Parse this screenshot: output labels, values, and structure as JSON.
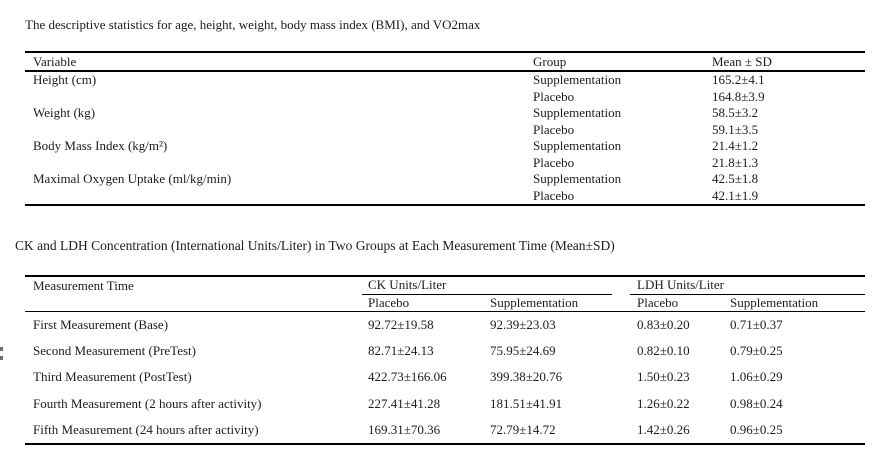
{
  "page": {
    "background": "#ffffff",
    "text_color": "#1c1c1c",
    "rule_color": "#000000"
  },
  "descriptive_table": {
    "caption": "The descriptive statistics for age, height, weight, body mass index (BMI), and VO2max",
    "headers": {
      "variable": "Variable",
      "group": "Group",
      "mean_sd": "Mean ± SD"
    },
    "rows": [
      {
        "variable": "Height (cm)",
        "group": "Supplementation",
        "mean_sd": "165.2±4.1"
      },
      {
        "variable": "",
        "group": "Placebo",
        "mean_sd": "164.8±3.9"
      },
      {
        "variable": "Weight (kg)",
        "group": "Supplementation",
        "mean_sd": "58.5±3.2"
      },
      {
        "variable": "",
        "group": "Placebo",
        "mean_sd": "59.1±3.5"
      },
      {
        "variable": "Body Mass Index (kg/m²)",
        "group": "Supplementation",
        "mean_sd": "21.4±1.2"
      },
      {
        "variable": "",
        "group": "Placebo",
        "mean_sd": "21.8±1.3"
      },
      {
        "variable": "Maximal Oxygen Uptake (ml/kg/min)",
        "group": "Supplementation",
        "mean_sd": "42.5±1.8"
      },
      {
        "variable": "",
        "group": "Placebo",
        "mean_sd": "42.1±1.9"
      }
    ]
  },
  "ck_ldh_table": {
    "caption": "CK and LDH Concentration (International Units/Liter) in Two Groups at Each Measurement Time (Mean±SD)",
    "col_header": "Measurement Time",
    "groups": {
      "ck": "CK Units/Liter",
      "ldh": "LDH Units/Liter"
    },
    "subheaders": {
      "ck_placebo": "Placebo",
      "ck_supp": "Supplementation",
      "ldh_placebo": "Placebo",
      "ldh_supp": "Supplementation"
    },
    "rows": [
      {
        "time": "First Measurement (Base)",
        "ck_placebo": "92.72±19.58",
        "ck_supp": "92.39±23.03",
        "ldh_placebo": "0.83±0.20",
        "ldh_supp": "0.71±0.37"
      },
      {
        "time": "Second Measurement (PreTest)",
        "ck_placebo": "82.71±24.13",
        "ck_supp": "75.95±24.69",
        "ldh_placebo": "0.82±0.10",
        "ldh_supp": "0.79±0.25"
      },
      {
        "time": "Third Measurement (PostTest)",
        "ck_placebo": "422.73±166.06",
        "ck_supp": "399.38±20.76",
        "ldh_placebo": "1.50±0.23",
        "ldh_supp": "1.06±0.29"
      },
      {
        "time": "Fourth Measurement (2 hours after activity)",
        "ck_placebo": "227.41±41.28",
        "ck_supp": "181.51±41.91",
        "ldh_placebo": "1.26±0.22",
        "ldh_supp": "0.98±0.24"
      },
      {
        "time": "Fifth Measurement (24 hours after activity)",
        "ck_placebo": "169.31±70.36",
        "ck_supp": "72.79±14.72",
        "ldh_placebo": "1.42±0.26",
        "ldh_supp": "0.96±0.25"
      }
    ]
  }
}
